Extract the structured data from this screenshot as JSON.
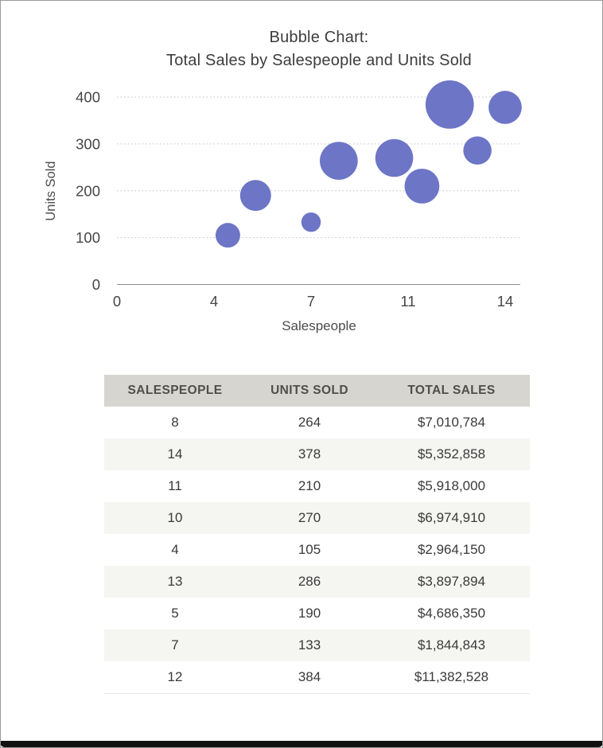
{
  "chart": {
    "title_line1": "Bubble Chart:",
    "title_line2": "Total Sales by Salespeople and Units Sold"
  },
  "chart_data": {
    "type": "scatter",
    "subtype": "bubble",
    "title": "Bubble Chart: Total Sales by Salespeople and Units Sold",
    "xlabel": "Salespeople",
    "ylabel": "Units Sold",
    "xlim": [
      0,
      14.5
    ],
    "ylim": [
      0,
      400
    ],
    "x_ticks": [
      {
        "pos": 0,
        "label": "0"
      },
      {
        "pos": 3.5,
        "label": "4"
      },
      {
        "pos": 7,
        "label": "7"
      },
      {
        "pos": 10.5,
        "label": "11"
      },
      {
        "pos": 14,
        "label": "14"
      }
    ],
    "y_ticks": [
      0,
      100,
      200,
      300,
      400
    ],
    "grid": "horizontal-dotted",
    "legend": "none",
    "size_encodes": "total_sales",
    "points": [
      {
        "x": 8,
        "y": 264,
        "size": 7010784
      },
      {
        "x": 14,
        "y": 378,
        "size": 5352858
      },
      {
        "x": 11,
        "y": 210,
        "size": 5918000
      },
      {
        "x": 10,
        "y": 270,
        "size": 6974910
      },
      {
        "x": 4,
        "y": 105,
        "size": 2964150
      },
      {
        "x": 13,
        "y": 286,
        "size": 3897894
      },
      {
        "x": 5,
        "y": 190,
        "size": 4686350
      },
      {
        "x": 7,
        "y": 133,
        "size": 1844843
      },
      {
        "x": 12,
        "y": 384,
        "size": 11382528
      }
    ]
  },
  "table": {
    "headers": [
      "SALESPEOPLE",
      "UNITS SOLD",
      "TOTAL SALES"
    ],
    "rows": [
      [
        "8",
        "264",
        "$7,010,784"
      ],
      [
        "14",
        "378",
        "$5,352,858"
      ],
      [
        "11",
        "210",
        "$5,918,000"
      ],
      [
        "10",
        "270",
        "$6,974,910"
      ],
      [
        "4",
        "105",
        "$2,964,150"
      ],
      [
        "13",
        "286",
        "$3,897,894"
      ],
      [
        "5",
        "190",
        "$4,686,350"
      ],
      [
        "7",
        "133",
        "$1,844,843"
      ],
      [
        "12",
        "384",
        "$11,382,528"
      ]
    ]
  },
  "colors": {
    "bubble": "#6d75c6",
    "gridline": "#c2c2c2",
    "axis_line": "#8e8e8e",
    "tick_text": "#464646",
    "axis_label_text": "#4c4c4c",
    "title_text": "#3d3d3d",
    "table_header_bg": "#d6d5d0",
    "table_row_alt_bg": "#f5f5f2",
    "frame_border": "#9a9a9a",
    "bottom_bar": "#111111"
  }
}
